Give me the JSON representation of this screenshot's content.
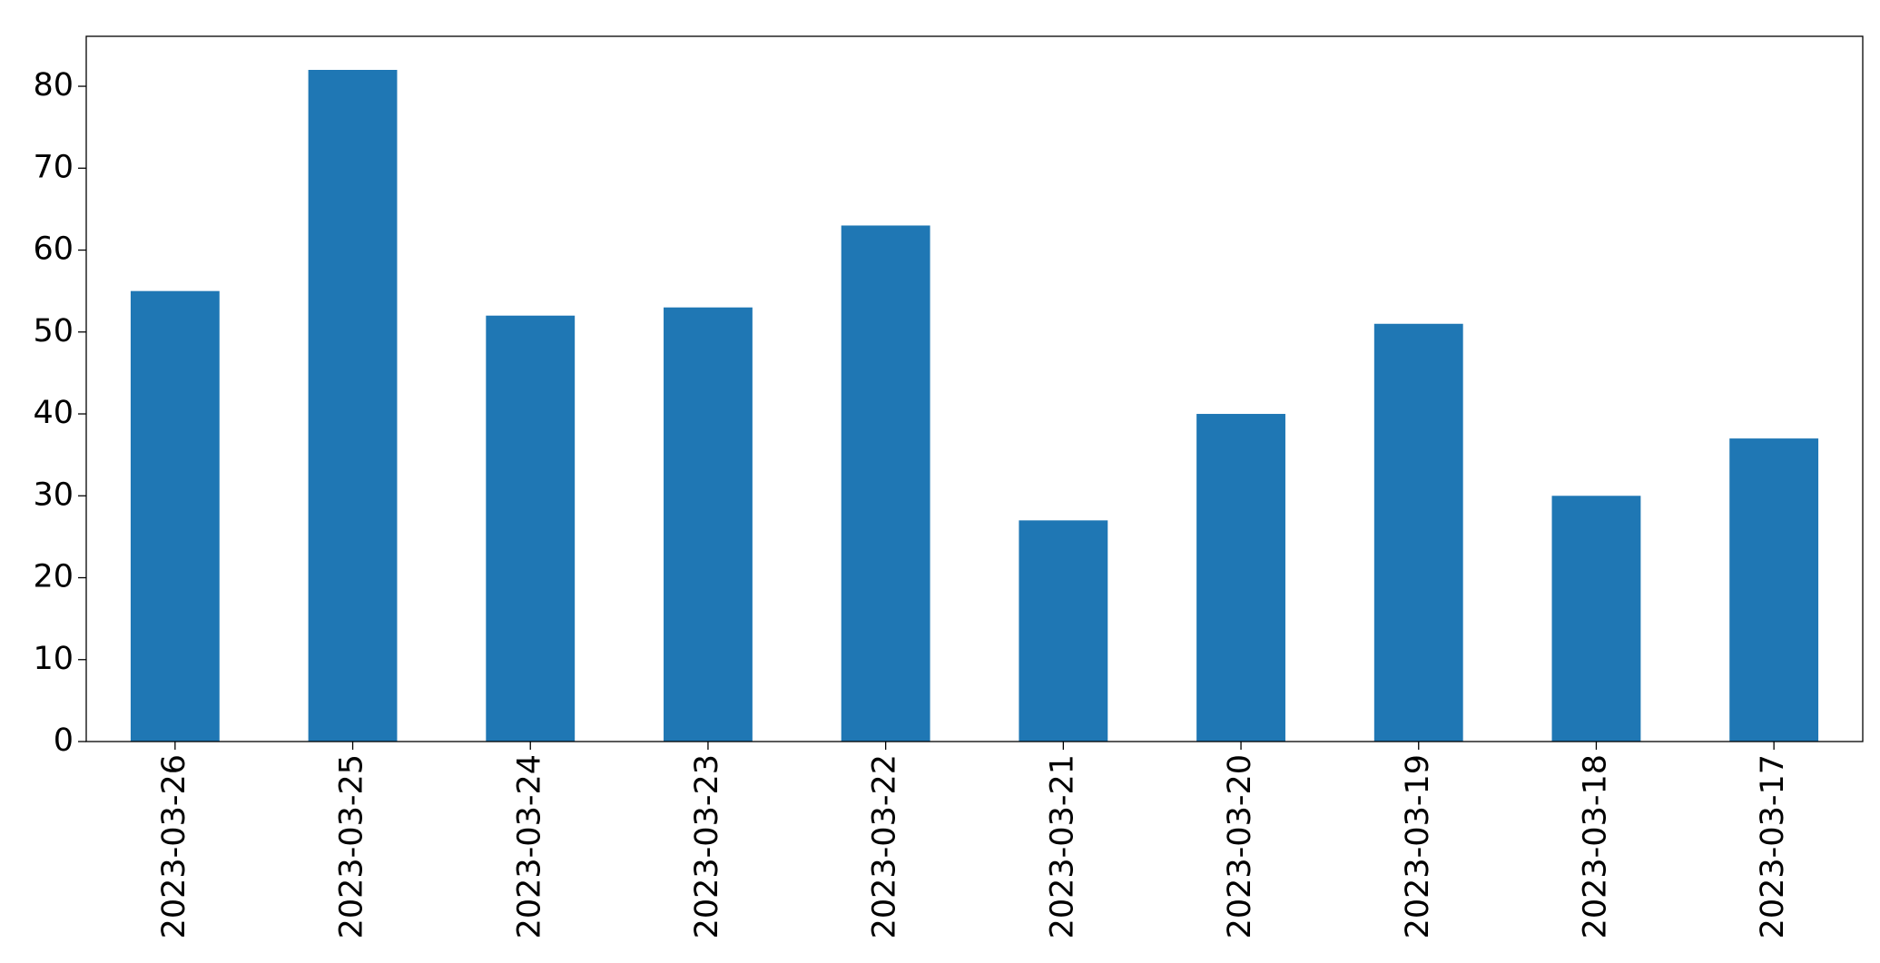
{
  "chart_data": {
    "type": "bar",
    "categories": [
      "2023-03-26",
      "2023-03-25",
      "2023-03-24",
      "2023-03-23",
      "2023-03-22",
      "2023-03-21",
      "2023-03-20",
      "2023-03-19",
      "2023-03-18",
      "2023-03-17"
    ],
    "values": [
      55,
      82,
      52,
      53,
      63,
      27,
      40,
      51,
      30,
      37
    ],
    "color": "#1f77b4",
    "ylim": [
      0,
      86.1
    ],
    "yticks": [
      0,
      10,
      20,
      30,
      40,
      50,
      60,
      70,
      80
    ],
    "grid": false
  }
}
